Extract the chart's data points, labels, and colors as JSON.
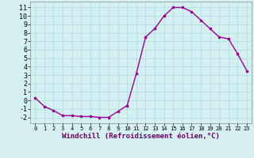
{
  "x": [
    0,
    1,
    2,
    3,
    4,
    5,
    6,
    7,
    8,
    9,
    10,
    11,
    12,
    13,
    14,
    15,
    16,
    17,
    18,
    19,
    20,
    21,
    22,
    23
  ],
  "y": [
    0.3,
    -0.7,
    -1.2,
    -1.8,
    -1.8,
    -1.9,
    -1.9,
    -2.0,
    -2.0,
    -1.3,
    -0.6,
    3.2,
    7.5,
    8.5,
    10.0,
    11.0,
    11.0,
    10.5,
    9.5,
    8.5,
    7.5,
    7.3,
    5.5,
    3.5
  ],
  "line_color": "#990099",
  "marker": "s",
  "marker_size": 2.0,
  "line_width": 1.0,
  "bg_color": "#d4f0f0",
  "grid_color": "#aadddd",
  "xlabel": "Windchill (Refroidissement éolien,°C)",
  "xlabel_fontsize": 6.5,
  "tick_fontsize": 6,
  "ylim": [
    -2.7,
    11.7
  ],
  "xlim": [
    -0.5,
    23.5
  ],
  "yticks": [
    -2,
    -1,
    0,
    1,
    2,
    3,
    4,
    5,
    6,
    7,
    8,
    9,
    10,
    11
  ],
  "xticks": [
    0,
    1,
    2,
    3,
    4,
    5,
    6,
    7,
    8,
    9,
    10,
    11,
    12,
    13,
    14,
    15,
    16,
    17,
    18,
    19,
    20,
    21,
    22,
    23
  ]
}
